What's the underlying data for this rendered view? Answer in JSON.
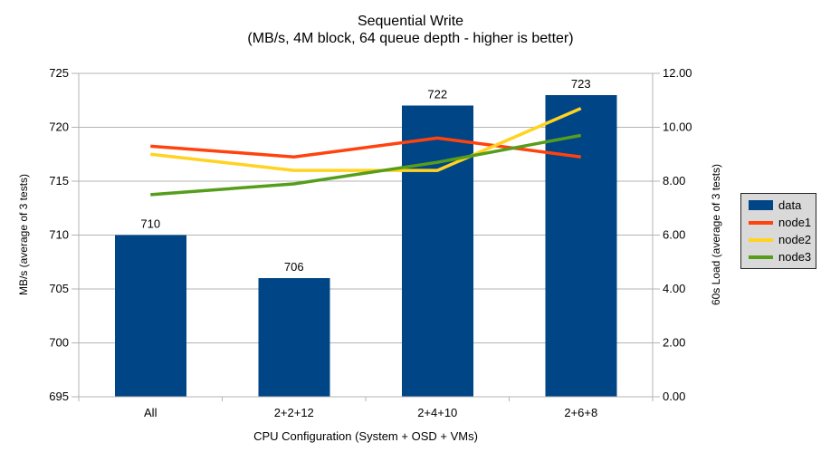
{
  "chart_data": {
    "type": "combo-bar-line",
    "title": "Sequential Write",
    "subtitle": "(MB/s, 4M block, 64 queue depth - higher is better)",
    "categories": [
      "All",
      "2+2+12",
      "2+4+10",
      "2+6+8"
    ],
    "series": [
      {
        "name": "data",
        "type": "bar",
        "axis": "left",
        "color": "#004586",
        "values": [
          710,
          706,
          722,
          723
        ]
      },
      {
        "name": "node1",
        "type": "line",
        "axis": "right",
        "color": "#ff420e",
        "values": [
          9.3,
          8.9,
          9.6,
          8.9
        ]
      },
      {
        "name": "node2",
        "type": "line",
        "axis": "right",
        "color": "#ffd320",
        "values": [
          9.0,
          8.4,
          8.4,
          10.7
        ]
      },
      {
        "name": "node3",
        "type": "line",
        "axis": "right",
        "color": "#579d1c",
        "values": [
          7.5,
          7.9,
          8.7,
          9.7
        ]
      }
    ],
    "left_axis": {
      "title": "MB/s (average of 3 tests)",
      "min": 695,
      "max": 725,
      "step": 5,
      "decimals": 0
    },
    "right_axis": {
      "title": "60s Load (average of 3 tests)",
      "min": 0,
      "max": 12,
      "step": 2,
      "decimals": 2
    },
    "x_axis": {
      "title": "CPU Configuration (System + OSD + VMs)"
    },
    "grid": true,
    "legend_position": "right",
    "bar_value_labels": [
      "710",
      "706",
      "722",
      "723"
    ]
  },
  "colors": {
    "background": "#ffffff",
    "grid": "#b3b3b3",
    "axis": "#b3b3b3",
    "text": "#000000",
    "legend_bg": "#d9d9d9",
    "legend_border": "#262626"
  }
}
